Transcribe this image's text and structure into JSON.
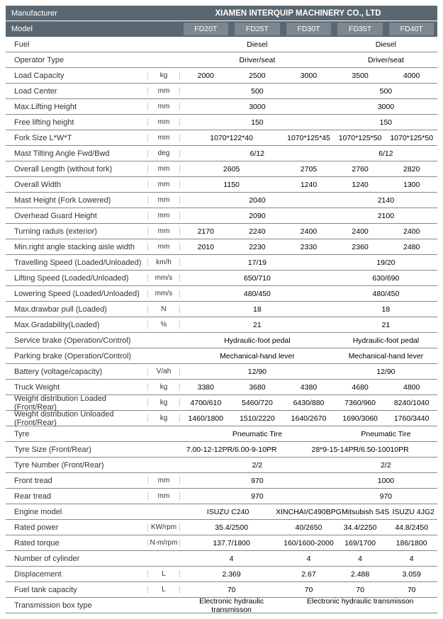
{
  "header": {
    "manufacturer_label": "Manufacturer",
    "manufacturer_value": "XIAMEN INTERQUIP MACHINERY CO., LTD",
    "model_label": "Model",
    "models": [
      "FD20T",
      "FD25T",
      "FD30T",
      "FD35T",
      "FD40T"
    ]
  },
  "rows": [
    {
      "label": "Fuel",
      "unit": "",
      "vals": [
        {
          "t": "Diesel",
          "span": 3
        },
        {
          "t": "Diesel",
          "span": 2
        }
      ]
    },
    {
      "label": "Operator Type",
      "unit": "",
      "vals": [
        {
          "t": "Driver/seat",
          "span": 3
        },
        {
          "t": "Driver/seat",
          "span": 2
        }
      ]
    },
    {
      "label": "Load Capacity",
      "unit": "kg",
      "vals": [
        {
          "t": "2000"
        },
        {
          "t": "2500"
        },
        {
          "t": "3000"
        },
        {
          "t": "3500"
        },
        {
          "t": "4000"
        }
      ]
    },
    {
      "label": "Load Center",
      "unit": "mm",
      "vals": [
        {
          "t": "500",
          "span": 3
        },
        {
          "t": "500",
          "span": 2
        }
      ]
    },
    {
      "label": "Max.Lifting Height",
      "unit": "mm",
      "vals": [
        {
          "t": "3000",
          "span": 3
        },
        {
          "t": "3000",
          "span": 2
        }
      ]
    },
    {
      "label": "Free lifting height",
      "unit": "mm",
      "vals": [
        {
          "t": "150",
          "span": 3
        },
        {
          "t": "150",
          "span": 2
        }
      ]
    },
    {
      "label": "Fork Size  L*W*T",
      "unit": "mm",
      "vals": [
        {
          "t": "1070*122*40",
          "span": 2
        },
        {
          "t": "1070*125*45"
        },
        {
          "t": "1070*125*50"
        },
        {
          "t": "1070*125*50"
        }
      ]
    },
    {
      "label": "Mast Tilting Angle  Fwd/Bwd",
      "unit": "deg",
      "vals": [
        {
          "t": "6/12",
          "span": 3
        },
        {
          "t": "6/12",
          "span": 2
        }
      ]
    },
    {
      "label": "Overall Length (without fork)",
      "unit": "mm",
      "vals": [
        {
          "t": "2605",
          "span": 2
        },
        {
          "t": "2705"
        },
        {
          "t": "2760"
        },
        {
          "t": "2820"
        }
      ]
    },
    {
      "label": "Overall Width",
      "unit": "mm",
      "vals": [
        {
          "t": "1150",
          "span": 2
        },
        {
          "t": "1240"
        },
        {
          "t": "1240"
        },
        {
          "t": "1300"
        }
      ]
    },
    {
      "label": "Mast Height (Fork Lowered)",
      "unit": "mm",
      "vals": [
        {
          "t": "2040",
          "span": 3
        },
        {
          "t": "2140",
          "span": 2
        }
      ]
    },
    {
      "label": "Overhead Guard Height",
      "unit": "mm",
      "vals": [
        {
          "t": "2090",
          "span": 3
        },
        {
          "t": "2100",
          "span": 2
        }
      ]
    },
    {
      "label": "Turning raduis (exterior)",
      "unit": "mm",
      "vals": [
        {
          "t": "2170"
        },
        {
          "t": "2240"
        },
        {
          "t": "2400"
        },
        {
          "t": "2400"
        },
        {
          "t": "2400"
        }
      ]
    },
    {
      "label": "Min.right angle stacking aisle width",
      "unit": "mm",
      "vals": [
        {
          "t": "2010"
        },
        {
          "t": "2230"
        },
        {
          "t": "2330"
        },
        {
          "t": "2360"
        },
        {
          "t": "2480"
        }
      ]
    },
    {
      "label": "Travelling Speed (Loaded/Unloaded)",
      "unit": "km/h",
      "vals": [
        {
          "t": "17/19",
          "span": 3
        },
        {
          "t": "19/20",
          "span": 2
        }
      ]
    },
    {
      "label": "Lifting Speed (Loaded/Unloaded)",
      "unit": "mm/s",
      "vals": [
        {
          "t": "650/710",
          "span": 3
        },
        {
          "t": "630/690",
          "span": 2
        }
      ]
    },
    {
      "label": "Lowering Speed (Loaded/Unloaded)",
      "unit": "mm/s",
      "vals": [
        {
          "t": "480/450",
          "span": 3
        },
        {
          "t": "480/450",
          "span": 2
        }
      ]
    },
    {
      "label": "Max.drawbar pull (Loaded)",
      "unit": "N",
      "vals": [
        {
          "t": "18",
          "span": 3
        },
        {
          "t": "18",
          "span": 2
        }
      ]
    },
    {
      "label": "Max.Gradability(Loaded)",
      "unit": "%",
      "vals": [
        {
          "t": "21",
          "span": 3
        },
        {
          "t": "21",
          "span": 2
        }
      ]
    },
    {
      "label": "Service brake (Operation/Control)",
      "unit": "",
      "vals": [
        {
          "t": "Hydraulic-foot pedal",
          "span": 3
        },
        {
          "t": "Hydraulic-foot pedal",
          "span": 2
        }
      ]
    },
    {
      "label": "Parking brake (Operation/Control)",
      "unit": "",
      "vals": [
        {
          "t": "Mechanical-hand lever",
          "span": 3
        },
        {
          "t": "Mechanical-hand lever",
          "span": 2
        }
      ]
    },
    {
      "label": "Battery (voltage/capacity)",
      "unit": "V/ah",
      "vals": [
        {
          "t": "12/90",
          "span": 3
        },
        {
          "t": "12/90",
          "span": 2
        }
      ]
    },
    {
      "label": "Truck Weight",
      "unit": "kg",
      "vals": [
        {
          "t": "3380"
        },
        {
          "t": "3680"
        },
        {
          "t": "4380"
        },
        {
          "t": "4680"
        },
        {
          "t": "4800"
        }
      ]
    },
    {
      "label": "Weight distribution Loaded (Front/Rear)",
      "unit": "kg",
      "vals": [
        {
          "t": "4700/610"
        },
        {
          "t": "5460/720"
        },
        {
          "t": "6430/880"
        },
        {
          "t": "7360/960"
        },
        {
          "t": "8240/1040"
        }
      ]
    },
    {
      "label": "Weight distribution Unloaded (Front/Rear)",
      "unit": "kg",
      "vals": [
        {
          "t": "1460/1800"
        },
        {
          "t": "1510/2220"
        },
        {
          "t": "1640/2670"
        },
        {
          "t": "1690/3060"
        },
        {
          "t": "1760/3440"
        }
      ]
    },
    {
      "label": "Tyre",
      "unit": "",
      "vals": [
        {
          "t": "Pneumatic Tire",
          "span": 3
        },
        {
          "t": "Pneumatic Tire",
          "span": 2
        }
      ]
    },
    {
      "label": "Tyre Size  (Front/Rear)",
      "unit": "",
      "vals": [
        {
          "t": "7.00-12-12PR/6.00-9-10PR",
          "span": 2
        },
        {
          "t": "28*9-15-14PR/6.50-10010PR",
          "span": 3
        }
      ]
    },
    {
      "label": "Tyre Number  (Front/Rear)",
      "unit": "",
      "vals": [
        {
          "t": "2/2",
          "span": 3
        },
        {
          "t": "2/2",
          "span": 2
        }
      ]
    },
    {
      "label": "Front tread",
      "unit": "mm",
      "vals": [
        {
          "t": "970",
          "span": 3
        },
        {
          "t": "1000",
          "span": 2
        }
      ]
    },
    {
      "label": "Rear tread",
      "unit": "mm",
      "vals": [
        {
          "t": "970",
          "span": 3
        },
        {
          "t": "970",
          "span": 2
        }
      ]
    },
    {
      "label": "Engine model",
      "unit": "",
      "vals": [
        {
          "t": "ISUZU C240",
          "span": 2
        },
        {
          "t": "XINCHAI/C490BPG"
        },
        {
          "t": "Mitsubish S4S"
        },
        {
          "t": "ISUZU 4JG2"
        }
      ]
    },
    {
      "label": "Rated power",
      "unit": "KW/rpm",
      "vals": [
        {
          "t": "35.4/2500",
          "span": 2
        },
        {
          "t": "40/2650"
        },
        {
          "t": "34.4/2250"
        },
        {
          "t": "44.8/2450"
        }
      ]
    },
    {
      "label": "Rated torque",
      "unit": "N-m/rpm",
      "vals": [
        {
          "t": "137.7/1800",
          "span": 2
        },
        {
          "t": "160/1600-2000"
        },
        {
          "t": "169/1700"
        },
        {
          "t": "186/1800"
        }
      ]
    },
    {
      "label": "Number of cylinder",
      "unit": "",
      "vals": [
        {
          "t": "4",
          "span": 2
        },
        {
          "t": "4"
        },
        {
          "t": "4"
        },
        {
          "t": "4"
        }
      ]
    },
    {
      "label": "Displacement",
      "unit": "L",
      "vals": [
        {
          "t": "2.369",
          "span": 2
        },
        {
          "t": "2.67"
        },
        {
          "t": "2.488"
        },
        {
          "t": "3.059"
        }
      ]
    },
    {
      "label": "Fuel tank capacity",
      "unit": "L",
      "vals": [
        {
          "t": "70",
          "span": 2
        },
        {
          "t": "70"
        },
        {
          "t": "70"
        },
        {
          "t": "70"
        }
      ]
    },
    {
      "label": "Transmission box type",
      "unit": "",
      "vals": [
        {
          "t": "Electronic hydraulic transmisson",
          "span": 2
        },
        {
          "t": "Electronic hydraulic transmisson",
          "span": 3
        }
      ]
    }
  ]
}
